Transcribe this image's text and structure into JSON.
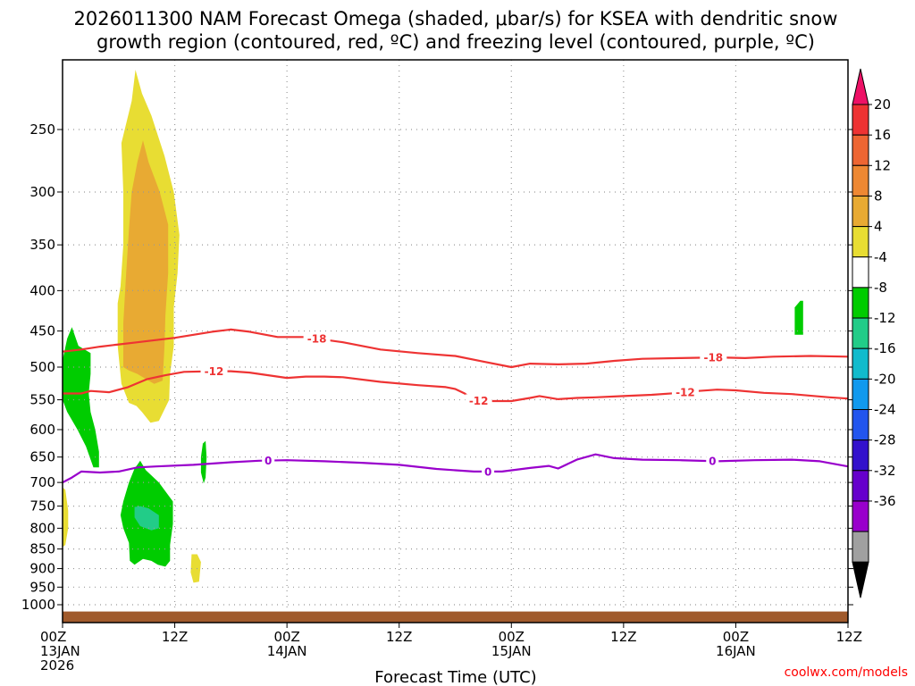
{
  "chart_data": {
    "type": "time-height contour",
    "title_line1": "2026011300 NAM Forecast Omega (shaded, μbar/s) for KSEA with dendritic snow",
    "title_line2": "growth region (contoured, red, ºC) and freezing level (contoured, purple, ºC)",
    "xlabel": "Forecast Time (UTC)",
    "credit": "coolwx.com/models",
    "x_range_hours": [
      0,
      84
    ],
    "y_range_hPa": [
      200,
      1050
    ],
    "y_ticks": [
      "250",
      "300",
      "350",
      "400",
      "450",
      "500",
      "550",
      "600",
      "650",
      "700",
      "750",
      "800",
      "850",
      "900",
      "950",
      "1000"
    ],
    "x_ticks": [
      {
        "hour": 0,
        "line1": "00Z",
        "line2": "13JAN",
        "line3": "2026"
      },
      {
        "hour": 12,
        "line1": "12Z",
        "line2": "",
        "line3": ""
      },
      {
        "hour": 24,
        "line1": "00Z",
        "line2": "14JAN",
        "line3": ""
      },
      {
        "hour": 36,
        "line1": "12Z",
        "line2": "",
        "line3": ""
      },
      {
        "hour": 48,
        "line1": "00Z",
        "line2": "15JAN",
        "line3": ""
      },
      {
        "hour": 60,
        "line1": "12Z",
        "line2": "",
        "line3": ""
      },
      {
        "hour": 72,
        "line1": "00Z",
        "line2": "16JAN",
        "line3": ""
      },
      {
        "hour": 84,
        "line1": "12Z",
        "line2": "",
        "line3": ""
      }
    ],
    "colorbar": {
      "labels": [
        "20",
        "16",
        "12",
        "8",
        "4",
        "-4",
        "-8",
        "-12",
        "-16",
        "-20",
        "-24",
        "-28",
        "-32",
        "-36"
      ],
      "colors": [
        "#ee1166",
        "#ee3333",
        "#ee6633",
        "#ee8833",
        "#e8aa33",
        "#e8dd33",
        "#ffffff",
        "#00cc00",
        "#22cc88",
        "#11bbcc",
        "#1199ee",
        "#2255ee",
        "#3311cc",
        "#6600cc",
        "#9900cc",
        "#a0a0a0",
        "#000000"
      ]
    },
    "contours": [
      {
        "name": "freezing-level",
        "label": "0",
        "color": "#9900cc",
        "points": [
          [
            0,
            700
          ],
          [
            1,
            690
          ],
          [
            2,
            678
          ],
          [
            4,
            680
          ],
          [
            6,
            678
          ],
          [
            8,
            670
          ],
          [
            10,
            668
          ],
          [
            14,
            665
          ],
          [
            18,
            660
          ],
          [
            21,
            657
          ],
          [
            24,
            656
          ],
          [
            28,
            658
          ],
          [
            32,
            661
          ],
          [
            36,
            665
          ],
          [
            40,
            673
          ],
          [
            44,
            678
          ],
          [
            47,
            678
          ],
          [
            50,
            671
          ],
          [
            52,
            667
          ],
          [
            53,
            672
          ],
          [
            55,
            655
          ],
          [
            57,
            645
          ],
          [
            59,
            652
          ],
          [
            62,
            655
          ],
          [
            66,
            656
          ],
          [
            70,
            658
          ],
          [
            74,
            656
          ],
          [
            78,
            655
          ],
          [
            81,
            658
          ],
          [
            84,
            668
          ]
        ],
        "label_hours": [
          22,
          45.5,
          69.5
        ]
      },
      {
        "name": "minus-12",
        "label": "-12",
        "color": "#ee3333",
        "points": [
          [
            0,
            540
          ],
          [
            2,
            540
          ],
          [
            3,
            536
          ],
          [
            5,
            538
          ],
          [
            7,
            530
          ],
          [
            9,
            518
          ],
          [
            11,
            512
          ],
          [
            13,
            507
          ],
          [
            16,
            506
          ],
          [
            18,
            506
          ],
          [
            20,
            508
          ],
          [
            22,
            512
          ],
          [
            24,
            516
          ],
          [
            26,
            514
          ],
          [
            28,
            514
          ],
          [
            30,
            515
          ],
          [
            34,
            522
          ],
          [
            38,
            527
          ],
          [
            41,
            530
          ],
          [
            42,
            533
          ],
          [
            43,
            540
          ],
          [
            44,
            551
          ],
          [
            46,
            552
          ],
          [
            48,
            552
          ],
          [
            50,
            547
          ],
          [
            51,
            544
          ],
          [
            53,
            549
          ],
          [
            55,
            547
          ],
          [
            57,
            546
          ],
          [
            60,
            544
          ],
          [
            63,
            542
          ],
          [
            66,
            539
          ],
          [
            68,
            536
          ],
          [
            70,
            534
          ],
          [
            72,
            535
          ],
          [
            75,
            539
          ],
          [
            78,
            541
          ],
          [
            82,
            546
          ],
          [
            84,
            548
          ]
        ],
        "label_hours": [
          16.2,
          44.5,
          66.6
        ]
      },
      {
        "name": "minus-18",
        "label": "-18",
        "color": "#ee3333",
        "points": [
          [
            0,
            478
          ],
          [
            2,
            475
          ],
          [
            4,
            471
          ],
          [
            6,
            468
          ],
          [
            8,
            465
          ],
          [
            10,
            462
          ],
          [
            12,
            459
          ],
          [
            14,
            455
          ],
          [
            16,
            451
          ],
          [
            18,
            448
          ],
          [
            20,
            451
          ],
          [
            23,
            458
          ],
          [
            26,
            458
          ],
          [
            30,
            465
          ],
          [
            34,
            475
          ],
          [
            38,
            480
          ],
          [
            42,
            484
          ],
          [
            45,
            492
          ],
          [
            48,
            500
          ],
          [
            50,
            495
          ],
          [
            53,
            496
          ],
          [
            56,
            495
          ],
          [
            59,
            491
          ],
          [
            62,
            488
          ],
          [
            66,
            487
          ],
          [
            70,
            486
          ],
          [
            73,
            487
          ],
          [
            76,
            485
          ],
          [
            80,
            484
          ],
          [
            84,
            485
          ]
        ],
        "label_hours": [
          27.2,
          69.6
        ]
      }
    ],
    "shaded_regions": [
      {
        "name": "omega-yellow-upper",
        "range": "4 to 8",
        "color": "#e8dd33",
        "points": [
          [
            5.9,
            415
          ],
          [
            6.2,
            395
          ],
          [
            6.5,
            350
          ],
          [
            6.5,
            300
          ],
          [
            6.3,
            260
          ],
          [
            7.4,
            230
          ],
          [
            7.8,
            210
          ],
          [
            8.5,
            225
          ],
          [
            9.5,
            240
          ],
          [
            10.9,
            270
          ],
          [
            11.9,
            300
          ],
          [
            12.5,
            340
          ],
          [
            12.3,
            380
          ],
          [
            11.9,
            420
          ],
          [
            11.9,
            470
          ],
          [
            11.5,
            510
          ],
          [
            11.4,
            550
          ],
          [
            10.3,
            585
          ],
          [
            9.4,
            588
          ],
          [
            8.5,
            570
          ],
          [
            7.9,
            560
          ],
          [
            7.1,
            555
          ],
          [
            6.3,
            525
          ],
          [
            5.9,
            470
          ]
        ]
      },
      {
        "name": "omega-orange-core",
        "range": "8 to 12",
        "color": "#e8aa33",
        "points": [
          [
            6.5,
            500
          ],
          [
            6.5,
            440
          ],
          [
            6.8,
            380
          ],
          [
            7.1,
            335
          ],
          [
            7.4,
            300
          ],
          [
            8.0,
            275
          ],
          [
            8.6,
            258
          ],
          [
            9.2,
            275
          ],
          [
            10.4,
            300
          ],
          [
            11.3,
            330
          ],
          [
            11.3,
            380
          ],
          [
            11.0,
            430
          ],
          [
            10.9,
            470
          ],
          [
            10.7,
            520
          ],
          [
            9.8,
            525
          ],
          [
            9.2,
            520
          ],
          [
            8.0,
            510
          ],
          [
            7.1,
            505
          ]
        ]
      },
      {
        "name": "omega-yellow-low-left",
        "range": "4 to 8",
        "color": "#e8dd33",
        "points": [
          [
            0,
            710
          ],
          [
            0.3,
            715
          ],
          [
            0.6,
            760
          ],
          [
            0.6,
            800
          ],
          [
            0.3,
            840
          ],
          [
            0,
            845
          ]
        ]
      },
      {
        "name": "omega-yellow-small",
        "range": "4 to 8",
        "color": "#e8dd33",
        "points": [
          [
            13.8,
            863
          ],
          [
            14.4,
            863
          ],
          [
            14.8,
            883
          ],
          [
            14.6,
            935
          ],
          [
            14.0,
            938
          ],
          [
            13.7,
            910
          ]
        ]
      },
      {
        "name": "omega-green-left",
        "range": "-4 to -8",
        "color": "#00cc00",
        "points": [
          [
            0,
            490
          ],
          [
            0.5,
            460
          ],
          [
            1.0,
            445
          ],
          [
            1.7,
            470
          ],
          [
            3.0,
            480
          ],
          [
            3.0,
            510
          ],
          [
            2.8,
            540
          ],
          [
            3.0,
            570
          ],
          [
            3.5,
            600
          ],
          [
            3.9,
            640
          ],
          [
            3.9,
            670
          ],
          [
            3.3,
            670
          ],
          [
            2.5,
            630
          ],
          [
            1.6,
            600
          ],
          [
            0.5,
            570
          ],
          [
            0,
            550
          ]
        ]
      },
      {
        "name": "omega-green-mid",
        "range": "-4 to -8",
        "color": "#00cc00",
        "points": [
          [
            6.2,
            770
          ],
          [
            6.5,
            740
          ],
          [
            7.1,
            700
          ],
          [
            7.7,
            672
          ],
          [
            8.0,
            665
          ],
          [
            8.3,
            657
          ],
          [
            8.9,
            675
          ],
          [
            10.3,
            700
          ],
          [
            11.8,
            740
          ],
          [
            11.8,
            790
          ],
          [
            11.5,
            840
          ],
          [
            11.5,
            880
          ],
          [
            11.0,
            895
          ],
          [
            10.2,
            890
          ],
          [
            9.5,
            880
          ],
          [
            8.6,
            875
          ],
          [
            7.7,
            890
          ],
          [
            7.2,
            880
          ],
          [
            7.1,
            835
          ],
          [
            6.5,
            800
          ]
        ]
      },
      {
        "name": "omega-teal",
        "range": "-8 to -12",
        "color": "#22cc88",
        "points": [
          [
            7.7,
            775
          ],
          [
            7.7,
            752
          ],
          [
            8.3,
            750
          ],
          [
            9.2,
            755
          ],
          [
            10.3,
            770
          ],
          [
            10.3,
            800
          ],
          [
            9.5,
            805
          ],
          [
            8.3,
            795
          ]
        ]
      },
      {
        "name": "omega-green-sliver",
        "range": "-4 to -8",
        "color": "#00cc00",
        "points": [
          [
            14.8,
            650
          ],
          [
            15.0,
            625
          ],
          [
            15.3,
            620
          ],
          [
            15.4,
            650
          ],
          [
            15.3,
            690
          ],
          [
            15.1,
            702
          ],
          [
            14.8,
            680
          ]
        ]
      },
      {
        "name": "omega-green-tiny-right",
        "range": "-4 to -8",
        "color": "#00cc00",
        "points": [
          [
            78.3,
            420
          ],
          [
            78.9,
            412
          ],
          [
            79.2,
            412
          ],
          [
            79.2,
            455
          ],
          [
            78.3,
            455
          ]
        ]
      }
    ],
    "ground": {
      "name": "terrain",
      "color": "#a05a2c",
      "top_hPa": 1020
    }
  }
}
